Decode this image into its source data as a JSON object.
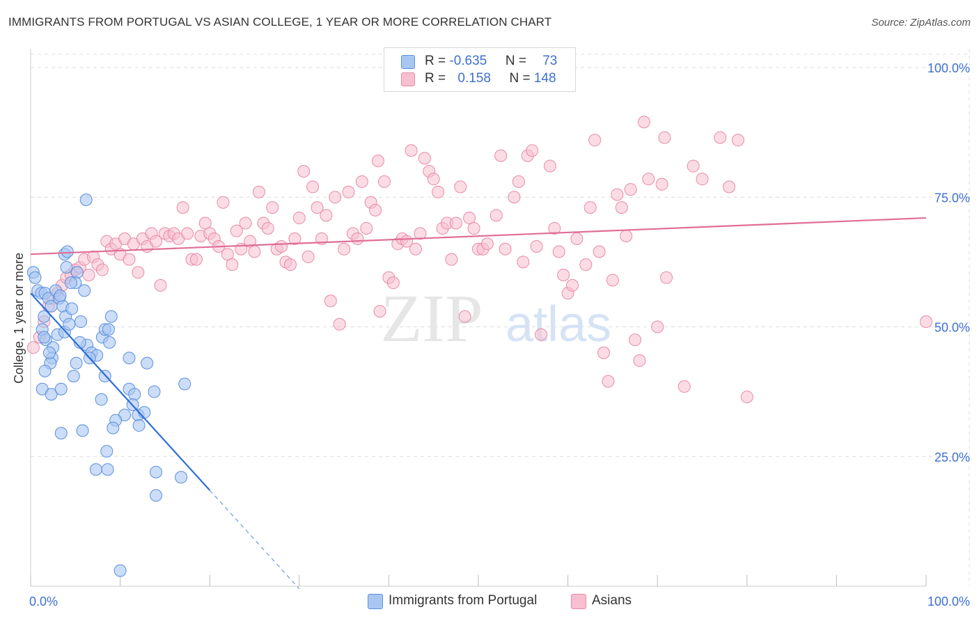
{
  "title": "IMMIGRANTS FROM PORTUGAL VS ASIAN COLLEGE, 1 YEAR OR MORE CORRELATION CHART",
  "source": "Source: ZipAtlas.com",
  "watermark": {
    "zip": "ZIP",
    "atlas": "atlas"
  },
  "colors": {
    "blue_fill": "#a9c6f2",
    "blue_stroke": "#5b8fdc",
    "blue_line": "#2d6fd6",
    "pink_fill": "#f7bfd0",
    "pink_stroke": "#e88aa8",
    "pink_line": "#e06d97",
    "axis_text": "#3d6fd0",
    "grid": "#dddddd"
  },
  "legend": {
    "rows": [
      {
        "r_label": "R = ",
        "r_value": "-0.635",
        "n_label": "N = ",
        "n_value": "73"
      },
      {
        "r_label": "R = ",
        "r_value": "0.158",
        "n_label": "N = ",
        "n_value": "148"
      }
    ]
  },
  "bottom_legend": {
    "blue": "Immigrants from Portugal",
    "pink": "Asians"
  },
  "chart_data": {
    "type": "scatter",
    "title": "IMMIGRANTS FROM PORTUGAL VS ASIAN COLLEGE, 1 YEAR OR MORE CORRELATION CHART",
    "xlabel": "",
    "ylabel": "College, 1 year or more",
    "xlim": [
      0,
      100
    ],
    "ylim": [
      0,
      103
    ],
    "x_tick_labels": [
      {
        "value": 0,
        "label": "0.0%"
      },
      {
        "value": 100,
        "label": "100.0%"
      }
    ],
    "y_tick_labels": [
      {
        "value": 25,
        "label": "25.0%"
      },
      {
        "value": 50,
        "label": "50.0%"
      },
      {
        "value": 75,
        "label": "75.0%"
      },
      {
        "value": 100,
        "label": "100.0%"
      }
    ],
    "series": [
      {
        "name": "Immigrants from Portugal",
        "color": "#a9c6f2",
        "R": -0.635,
        "N": 73,
        "trend": {
          "x0": 0,
          "y0": 56.5,
          "x1": 20,
          "y1": 18.5,
          "dash_to_x": 30
        },
        "points": [
          [
            0.3,
            60.5
          ],
          [
            0.5,
            59.5
          ],
          [
            0.8,
            57
          ],
          [
            1.2,
            56.5
          ],
          [
            1.6,
            56.5
          ],
          [
            2,
            55.5
          ],
          [
            2.3,
            54
          ],
          [
            1.5,
            52
          ],
          [
            2.8,
            57
          ],
          [
            3.2,
            55.5
          ],
          [
            3.6,
            54
          ],
          [
            3.9,
            52
          ],
          [
            1.3,
            49.5
          ],
          [
            1.7,
            47.5
          ],
          [
            2.5,
            46
          ],
          [
            3,
            48.5
          ],
          [
            3.8,
            49
          ],
          [
            4.3,
            50.5
          ],
          [
            5.2,
            60.5
          ],
          [
            5,
            58.5
          ],
          [
            4.5,
            58.5
          ],
          [
            4,
            61.5
          ],
          [
            3.8,
            64
          ],
          [
            4.1,
            64.5
          ],
          [
            6,
            57
          ],
          [
            6.2,
            74.5
          ],
          [
            5.6,
            51
          ],
          [
            6.3,
            46.5
          ],
          [
            6.8,
            45
          ],
          [
            7.4,
            44.5
          ],
          [
            8,
            48
          ],
          [
            8.3,
            49.5
          ],
          [
            8.7,
            49.5
          ],
          [
            8.8,
            47
          ],
          [
            9,
            52
          ],
          [
            5.5,
            47
          ],
          [
            2.4,
            44
          ],
          [
            2.2,
            43
          ],
          [
            1.6,
            41.5
          ],
          [
            4.8,
            40.5
          ],
          [
            5.1,
            43
          ],
          [
            1.3,
            38
          ],
          [
            2.3,
            37
          ],
          [
            3.4,
            38
          ],
          [
            8.3,
            40.5
          ],
          [
            11,
            44
          ],
          [
            13,
            43
          ],
          [
            11,
            38
          ],
          [
            11.6,
            37
          ],
          [
            13.8,
            37.5
          ],
          [
            17.2,
            39
          ],
          [
            7.9,
            36
          ],
          [
            11.4,
            35
          ],
          [
            12,
            33
          ],
          [
            12.7,
            33.5
          ],
          [
            10.5,
            33
          ],
          [
            9.5,
            32
          ],
          [
            9.2,
            30.5
          ],
          [
            12.1,
            31
          ],
          [
            3.4,
            29.5
          ],
          [
            5.8,
            30
          ],
          [
            8.5,
            26
          ],
          [
            7.3,
            22.5
          ],
          [
            8.6,
            22.5
          ],
          [
            14,
            22
          ],
          [
            16.8,
            21
          ],
          [
            14,
            17.5
          ],
          [
            10,
            3
          ],
          [
            1.5,
            48
          ],
          [
            2.1,
            45
          ],
          [
            3.3,
            56
          ],
          [
            6.6,
            44
          ],
          [
            4.6,
            53.5
          ]
        ]
      },
      {
        "name": "Asians",
        "color": "#f7bfd0",
        "R": 0.158,
        "N": 148,
        "trend": {
          "x0": 0,
          "y0": 64,
          "x1": 100,
          "y1": 71
        },
        "points": [
          [
            0.3,
            46
          ],
          [
            1,
            48
          ],
          [
            1.5,
            51
          ],
          [
            2,
            54
          ],
          [
            2.5,
            55.5
          ],
          [
            3,
            56.5
          ],
          [
            3.5,
            58
          ],
          [
            4,
            59.5
          ],
          [
            4.5,
            60
          ],
          [
            5,
            61
          ],
          [
            5.5,
            61.5
          ],
          [
            6,
            63
          ],
          [
            6.5,
            60
          ],
          [
            7,
            63.5
          ],
          [
            7.5,
            62
          ],
          [
            8,
            61
          ],
          [
            8.5,
            66.5
          ],
          [
            9,
            65
          ],
          [
            9.5,
            66
          ],
          [
            10,
            64
          ],
          [
            10.5,
            67
          ],
          [
            11,
            63
          ],
          [
            11.5,
            66
          ],
          [
            12,
            60.5
          ],
          [
            12.5,
            67
          ],
          [
            13,
            65.5
          ],
          [
            13.5,
            68
          ],
          [
            14,
            66.5
          ],
          [
            14.5,
            58
          ],
          [
            15,
            68
          ],
          [
            15.5,
            67.5
          ],
          [
            16,
            68
          ],
          [
            16.5,
            67
          ],
          [
            17,
            73
          ],
          [
            17.5,
            68
          ],
          [
            18,
            63
          ],
          [
            18.5,
            63
          ],
          [
            19,
            67.5
          ],
          [
            19.5,
            70
          ],
          [
            20,
            68
          ],
          [
            20.5,
            67
          ],
          [
            21,
            65.5
          ],
          [
            21.5,
            74
          ],
          [
            22,
            64
          ],
          [
            22.5,
            62
          ],
          [
            23,
            68.5
          ],
          [
            23.5,
            65
          ],
          [
            24,
            70
          ],
          [
            24.5,
            66.5
          ],
          [
            25,
            64.5
          ],
          [
            25.5,
            76
          ],
          [
            26,
            70
          ],
          [
            26.5,
            69
          ],
          [
            27,
            73
          ],
          [
            27.5,
            65
          ],
          [
            28,
            65.5
          ],
          [
            28.5,
            62.5
          ],
          [
            29,
            62
          ],
          [
            29.5,
            67
          ],
          [
            30,
            71
          ],
          [
            30.5,
            80
          ],
          [
            31,
            63.5
          ],
          [
            31.5,
            77
          ],
          [
            32,
            73
          ],
          [
            32.5,
            67
          ],
          [
            33,
            71.5
          ],
          [
            33.5,
            55
          ],
          [
            34,
            75
          ],
          [
            34.5,
            50.5
          ],
          [
            35,
            65
          ],
          [
            35.5,
            76
          ],
          [
            36,
            68
          ],
          [
            36.5,
            67
          ],
          [
            37,
            78
          ],
          [
            37.5,
            69
          ],
          [
            38,
            74
          ],
          [
            38.5,
            72.5
          ],
          [
            38.8,
            82
          ],
          [
            39,
            53
          ],
          [
            39.5,
            78
          ],
          [
            40,
            59.5
          ],
          [
            40.5,
            58.5
          ],
          [
            41,
            66
          ],
          [
            41.5,
            67
          ],
          [
            42,
            66.5
          ],
          [
            42.5,
            84
          ],
          [
            43,
            65
          ],
          [
            43.5,
            68
          ],
          [
            44,
            82.5
          ],
          [
            44.5,
            80
          ],
          [
            45,
            78.5
          ],
          [
            45.5,
            76
          ],
          [
            46,
            69
          ],
          [
            46.5,
            70
          ],
          [
            47,
            63
          ],
          [
            47.5,
            70
          ],
          [
            48,
            77
          ],
          [
            48.5,
            52
          ],
          [
            49,
            71
          ],
          [
            49.5,
            69
          ],
          [
            50,
            65
          ],
          [
            50.5,
            65
          ],
          [
            51,
            66
          ],
          [
            52,
            71.5
          ],
          [
            52.5,
            83
          ],
          [
            53,
            65
          ],
          [
            54,
            75
          ],
          [
            54.5,
            78
          ],
          [
            55,
            62.5
          ],
          [
            55.5,
            83
          ],
          [
            56,
            84
          ],
          [
            56.5,
            65.5
          ],
          [
            57,
            48.5
          ],
          [
            58,
            81
          ],
          [
            58.5,
            69
          ],
          [
            59,
            64.5
          ],
          [
            59.5,
            60
          ],
          [
            60,
            56.5
          ],
          [
            60.5,
            58
          ],
          [
            61,
            67
          ],
          [
            62,
            62
          ],
          [
            62.5,
            73
          ],
          [
            63,
            86
          ],
          [
            63.5,
            64.5
          ],
          [
            64,
            45
          ],
          [
            64.5,
            39.5
          ],
          [
            65,
            59
          ],
          [
            65.5,
            75.5
          ],
          [
            66,
            73
          ],
          [
            66.5,
            67.5
          ],
          [
            67,
            76.5
          ],
          [
            67.5,
            47.5
          ],
          [
            68,
            43.5
          ],
          [
            68.5,
            89.5
          ],
          [
            69,
            78.5
          ],
          [
            70,
            50
          ],
          [
            70.5,
            77.5
          ],
          [
            70.8,
            86.5
          ],
          [
            71,
            59.5
          ],
          [
            73,
            38.5
          ],
          [
            74,
            81
          ],
          [
            75,
            78.5
          ],
          [
            77,
            86.5
          ],
          [
            78,
            77
          ],
          [
            79,
            86
          ],
          [
            80,
            36.5
          ],
          [
            100,
            51
          ]
        ]
      }
    ]
  }
}
